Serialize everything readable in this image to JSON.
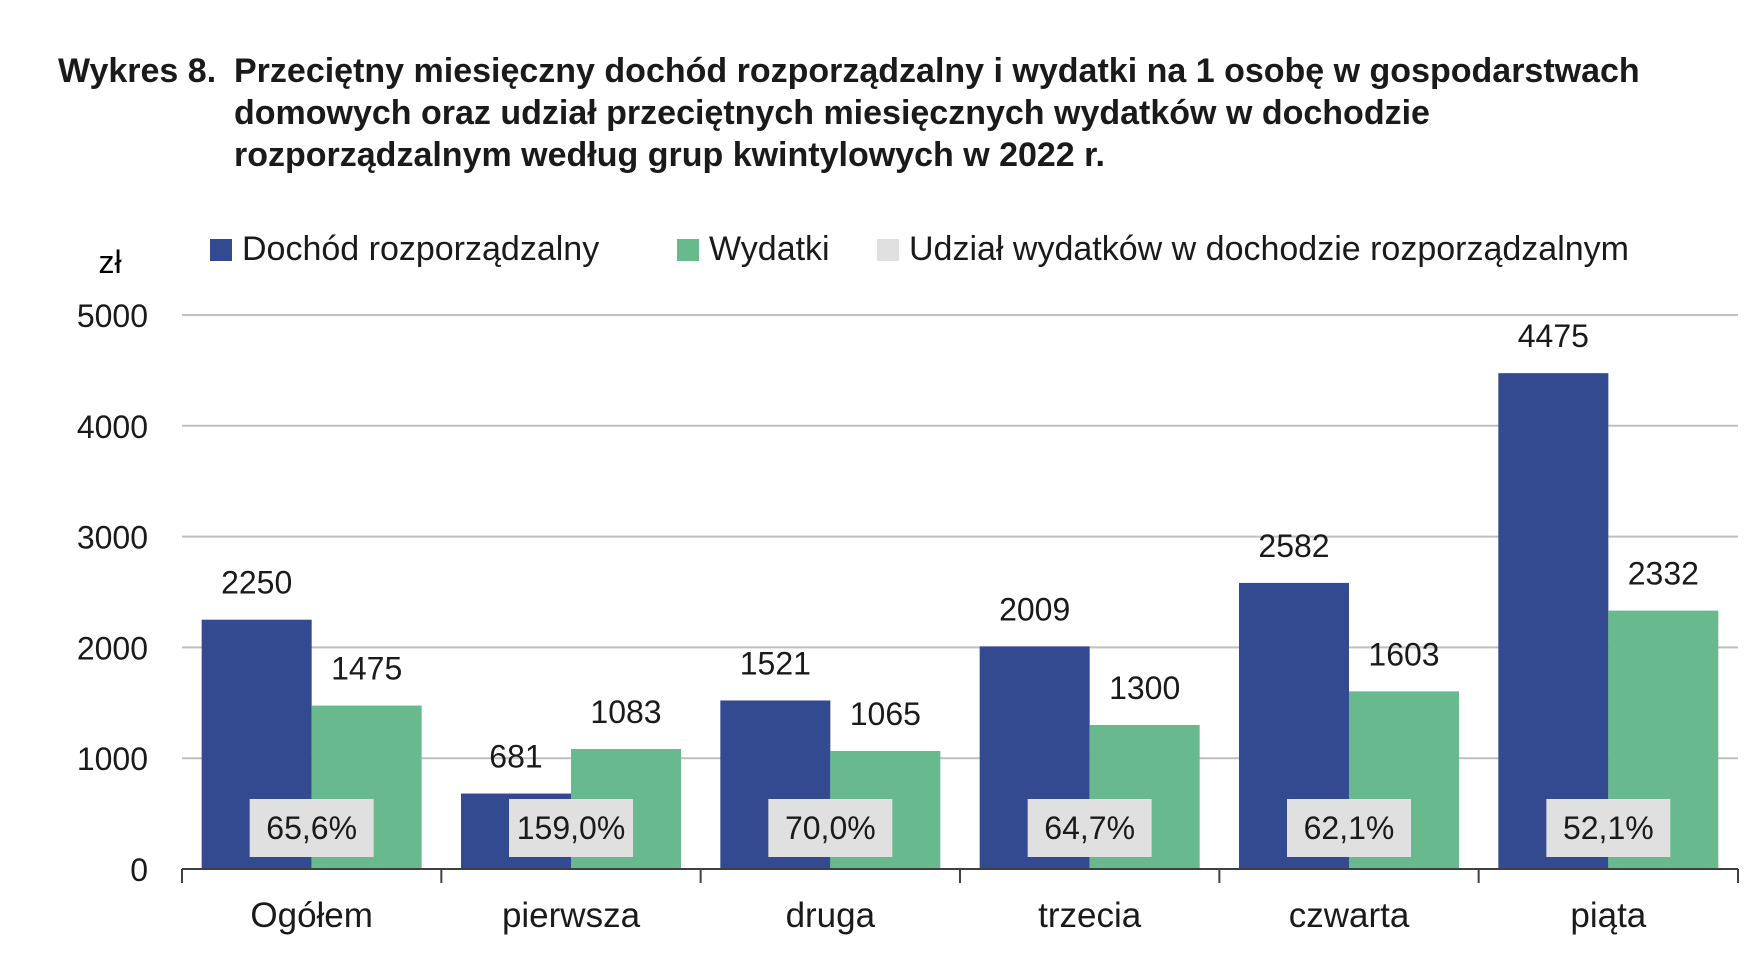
{
  "title": {
    "prefix": "Wykres 8.",
    "lines": [
      "Przeciętny miesięczny dochód rozporządzalny i wydatki na 1 osobę w gospodarstwach",
      "domowych oraz udział przeciętnych miesięcznych wydatków w dochodzie",
      "rozporządzalnym według grup kwintylowych w 2022 r."
    ]
  },
  "legend": [
    {
      "label": "Dochód rozporządzalny",
      "color": "#334a90"
    },
    {
      "label": "Wydatki",
      "color": "#68b98d"
    },
    {
      "label": "Udział wydatków w dochodzie rozporządzalnym",
      "color": "#e0e0e0"
    }
  ],
  "chart_data": {
    "type": "bar",
    "ylabel": "zł",
    "ylim": [
      0,
      5000
    ],
    "yticks": [
      0,
      1000,
      2000,
      3000,
      4000,
      5000
    ],
    "grid": true,
    "legend_position": "top",
    "categories": [
      "Ogółem",
      "pierwsza",
      "druga",
      "trzecia",
      "czwarta",
      "piąta"
    ],
    "series": [
      {
        "name": "Dochód rozporządzalny",
        "color": "#334a90",
        "values": [
          2250,
          681,
          1521,
          2009,
          2582,
          4475
        ]
      },
      {
        "name": "Wydatki",
        "color": "#68b98d",
        "values": [
          1475,
          1083,
          1065,
          1300,
          1603,
          2332
        ]
      }
    ],
    "share": {
      "name": "Udział wydatków w dochodzie rozporządzalnym",
      "color": "#e0e0e0",
      "labels": [
        "65,6%",
        "159,0%",
        "70,0%",
        "64,7%",
        "62,1%",
        "52,1%"
      ]
    }
  }
}
